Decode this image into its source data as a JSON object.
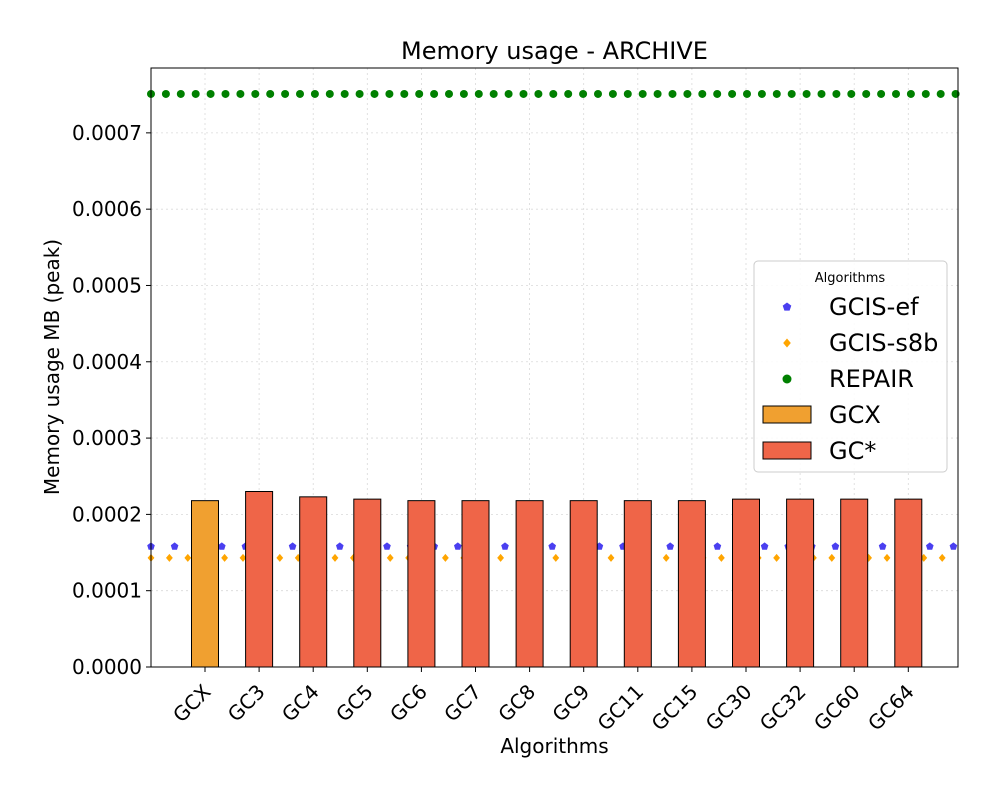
{
  "chart_data": {
    "type": "bar",
    "title": "Memory usage -  ARCHIVE",
    "xlabel": "Algorithms",
    "ylabel": "Memory usage MB (peak)",
    "ylim": [
      0,
      0.000785
    ],
    "yticks": [
      "0.0000",
      "0.0001",
      "0.0002",
      "0.0003",
      "0.0004",
      "0.0005",
      "0.0006",
      "0.0007"
    ],
    "ytick_values": [
      0,
      0.0001,
      0.0002,
      0.0003,
      0.0004,
      0.0005,
      0.0006,
      0.0007
    ],
    "grid": true,
    "categories": [
      "GCX",
      "GC3",
      "GC4",
      "GC5",
      "GC6",
      "GC7",
      "GC8",
      "GC9",
      "GC11",
      "GC15",
      "GC30",
      "GC32",
      "GC60",
      "GC64"
    ],
    "series": [
      {
        "name": "GCX",
        "color": "#f0a030",
        "values": [
          0.000218,
          null,
          null,
          null,
          null,
          null,
          null,
          null,
          null,
          null,
          null,
          null,
          null,
          null
        ]
      },
      {
        "name": "GC*",
        "color": "#ef6548",
        "values": [
          null,
          0.00023,
          0.000223,
          0.00022,
          0.000218,
          0.000218,
          0.000218,
          0.000218,
          0.000218,
          0.000218,
          0.00022,
          0.00022,
          0.00022,
          0.00022
        ]
      }
    ],
    "reference_lines": [
      {
        "name": "GCIS-ef",
        "value": 0.000158,
        "color": "#4a3ff0",
        "marker": "pentagon"
      },
      {
        "name": "GCIS-s8b",
        "value": 0.000143,
        "color": "#ffa500",
        "marker": "diamond"
      },
      {
        "name": "REPAIR",
        "value": 0.000751,
        "color": "#008000",
        "marker": "circle"
      }
    ],
    "legend": {
      "title": "Algorithms",
      "position": "center-right",
      "entries": [
        "GCIS-ef",
        "GCIS-s8b",
        "REPAIR",
        "GCX",
        "GC*"
      ]
    }
  }
}
